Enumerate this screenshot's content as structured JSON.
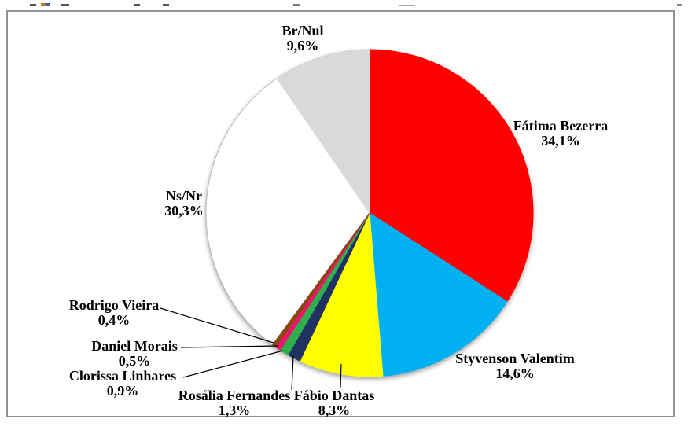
{
  "chart_data": {
    "type": "pie",
    "title": "",
    "legend_position": "none",
    "data_labels": "outside-with-leader-lines",
    "start_angle_deg": 0,
    "direction": "clockwise",
    "value_format": "percent-decimal-comma",
    "slices": [
      {
        "label": "Fátima Bezerra",
        "pct_label": "34,1%",
        "value": 34.1,
        "color": "#FF0000"
      },
      {
        "label": "Styvenson Valentim",
        "pct_label": "14,6%",
        "value": 14.6,
        "color": "#00B0F0"
      },
      {
        "label": "Fábio Dantas",
        "pct_label": "8,3%",
        "value": 8.3,
        "color": "#FFFF00"
      },
      {
        "label": "Rosália Fernandes",
        "pct_label": "1,3%",
        "value": 1.3,
        "color": "#1F3262"
      },
      {
        "label": "Clorissa Linhares",
        "pct_label": "0,9%",
        "value": 0.9,
        "color": "#2EAE4C"
      },
      {
        "label": "Daniel Morais",
        "pct_label": "0,5%",
        "value": 0.5,
        "color": "#EF146E"
      },
      {
        "label": "Rodrigo Vieira",
        "pct_label": "0,4%",
        "value": 0.4,
        "color": "#8B4513"
      },
      {
        "label": "Ns/Nr",
        "pct_label": "30,3%",
        "value": 30.3,
        "color": "#FFFFFF"
      },
      {
        "label": "Br/Nul",
        "pct_label": "9,6%",
        "value": 9.6,
        "color": "#D9D9D9"
      }
    ]
  }
}
